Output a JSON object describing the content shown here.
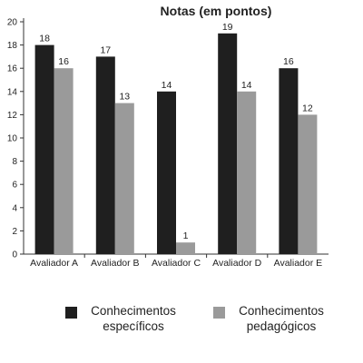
{
  "chart_data": {
    "type": "bar",
    "title": "Notas (em pontos)",
    "xlabel": "",
    "ylabel": "",
    "categories": [
      "Avaliador A",
      "Avaliador B",
      "Avaliador C",
      "Avaliador D",
      "Avaliador E"
    ],
    "series": [
      {
        "name": "Conhecimentos\nespecíficos",
        "values": [
          18,
          17,
          14,
          19,
          16
        ],
        "color": "#1f1f1f"
      },
      {
        "name": "Conhecimentos\npedagógicos",
        "values": [
          16,
          13,
          1,
          14,
          12
        ],
        "color": "#9a9a9a"
      }
    ],
    "ylim": [
      0,
      20
    ],
    "yticks": [
      0,
      2,
      4,
      6,
      8,
      10,
      12,
      14,
      16,
      18,
      20
    ],
    "grid": false,
    "legend_position": "bottom",
    "data_labels": true
  }
}
